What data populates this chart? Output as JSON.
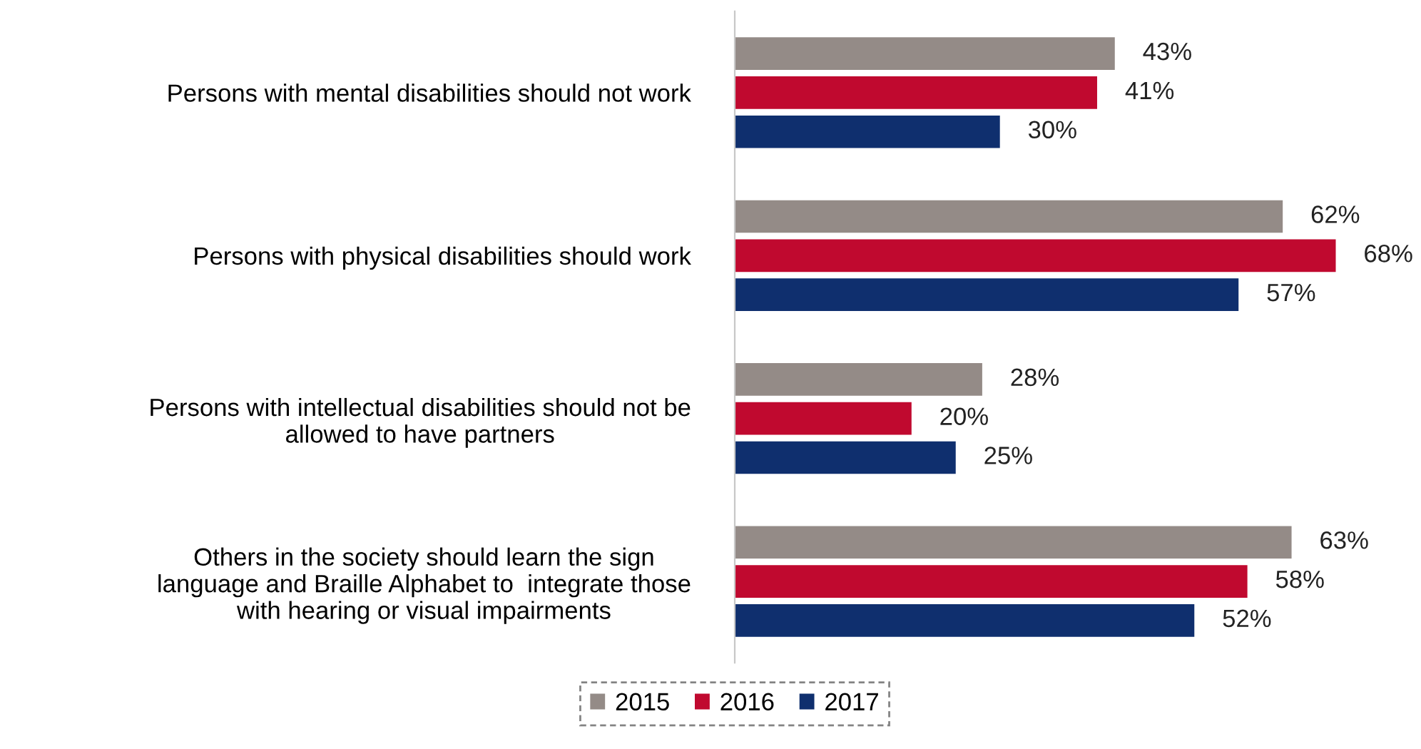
{
  "chart_data": {
    "type": "bar",
    "orientation": "horizontal",
    "categories": [
      "Persons with mental disabilities should not work",
      "Persons with physical disabilities should work",
      "Persons with intellectual disabilities should not be\nallowed to have partners",
      "Others in the society should learn the sign\nlanguage and Braille Alphabet to  integrate those\nwith hearing or visual impairments"
    ],
    "series": [
      {
        "name": "2015",
        "color": "#948b87",
        "values": [
          43,
          62,
          28,
          63
        ],
        "value_labels": [
          "43%",
          "62%",
          "28%",
          "63%"
        ]
      },
      {
        "name": "2016",
        "color": "#c0092f",
        "values": [
          41,
          68,
          20,
          58
        ],
        "value_labels": [
          "41%",
          "68%",
          "20%",
          "58%"
        ]
      },
      {
        "name": "2017",
        "color": "#0f2f6e",
        "values": [
          30,
          57,
          25,
          52
        ],
        "value_labels": [
          "30%",
          "57%",
          "25%",
          "52%"
        ]
      }
    ],
    "legend": "bottom",
    "grid": false
  }
}
